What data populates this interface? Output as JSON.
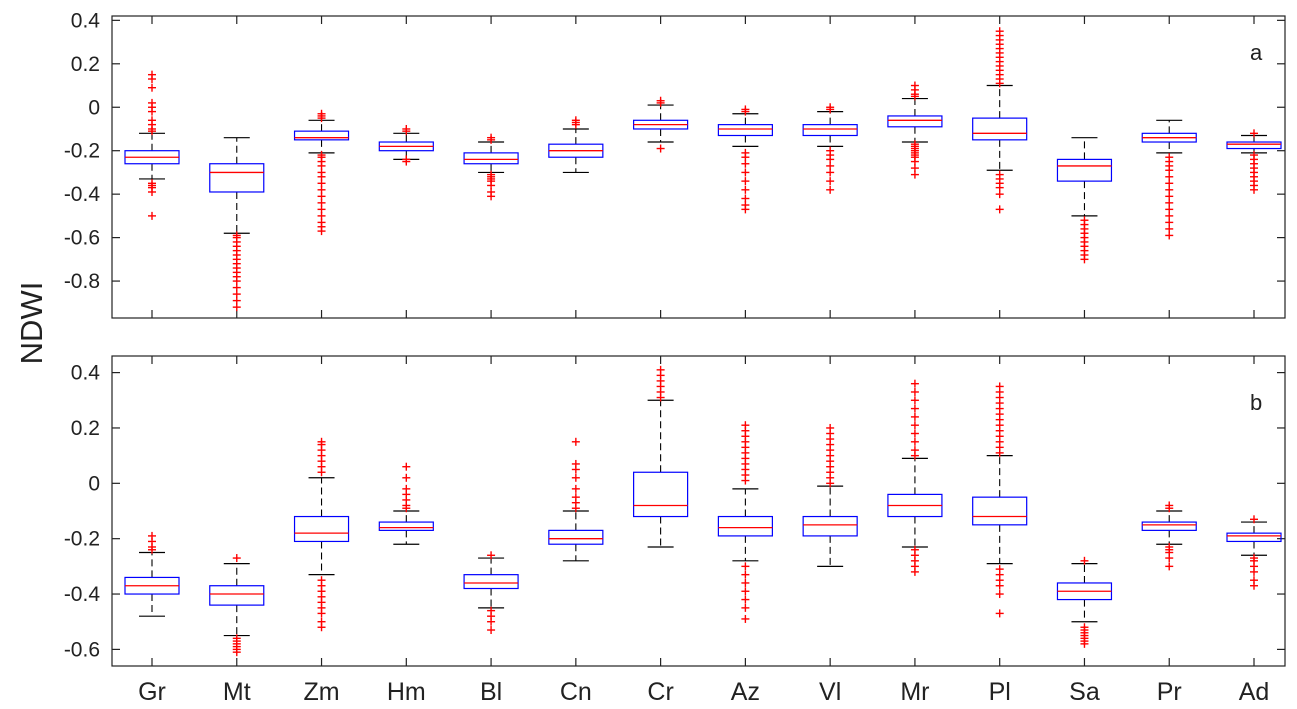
{
  "chart_data": {
    "type": "box",
    "ylabel": "NDWI",
    "categories": [
      "Gr",
      "Mt",
      "Zm",
      "Hm",
      "Bl",
      "Cn",
      "Cr",
      "Az",
      "Vl",
      "Mr",
      "Pl",
      "Sa",
      "Pr",
      "Ad"
    ],
    "colors": {
      "box": "#0000ff",
      "median": "#ff0000",
      "outlier": "#ff0000",
      "whisker": "#000000",
      "axes": "#222222"
    },
    "panels": [
      {
        "label": "a",
        "ylim": [
          -0.97,
          0.42
        ],
        "yticks": [
          0.4,
          0.2,
          0,
          -0.2,
          -0.4,
          -0.6,
          -0.8
        ],
        "ytick_labels": [
          "0.4",
          "0.2",
          "0",
          "-0.2",
          "-0.4",
          "-0.6",
          "-0.8"
        ],
        "boxes": [
          {
            "category": "Gr",
            "whisker_low": -0.33,
            "q1": -0.26,
            "median": -0.23,
            "q3": -0.2,
            "whisker_high": -0.12,
            "outliers": [
              0.15,
              0.13,
              0.09,
              0.02,
              0,
              -0.02,
              -0.06,
              -0.08,
              -0.1,
              -0.11,
              -0.35,
              -0.36,
              -0.37,
              -0.39,
              -0.5
            ]
          },
          {
            "category": "Mt",
            "whisker_low": -0.58,
            "q1": -0.39,
            "median": -0.3,
            "q3": -0.26,
            "whisker_high": -0.14,
            "outliers": [
              -0.59,
              -0.6,
              -0.62,
              -0.64,
              -0.66,
              -0.68,
              -0.7,
              -0.72,
              -0.74,
              -0.76,
              -0.78,
              -0.8,
              -0.83,
              -0.86,
              -0.89,
              -0.92
            ]
          },
          {
            "category": "Zm",
            "whisker_low": -0.21,
            "q1": -0.15,
            "median": -0.14,
            "q3": -0.11,
            "whisker_high": -0.06,
            "outliers": [
              -0.03,
              -0.04,
              -0.05,
              -0.22,
              -0.23,
              -0.25,
              -0.27,
              -0.3,
              -0.32,
              -0.35,
              -0.38,
              -0.41,
              -0.44,
              -0.47,
              -0.5,
              -0.53,
              -0.55,
              -0.57
            ]
          },
          {
            "category": "Hm",
            "whisker_low": -0.24,
            "q1": -0.2,
            "median": -0.18,
            "q3": -0.16,
            "whisker_high": -0.12,
            "outliers": [
              -0.1,
              -0.11,
              -0.24,
              -0.25
            ]
          },
          {
            "category": "Bl",
            "whisker_low": -0.3,
            "q1": -0.26,
            "median": -0.24,
            "q3": -0.21,
            "whisker_high": -0.16,
            "outliers": [
              -0.14,
              -0.15,
              -0.31,
              -0.32,
              -0.33,
              -0.34,
              -0.36,
              -0.39,
              -0.41
            ]
          },
          {
            "category": "Cn",
            "whisker_low": -0.3,
            "q1": -0.23,
            "median": -0.2,
            "q3": -0.17,
            "whisker_high": -0.1,
            "outliers": [
              -0.06,
              -0.07,
              -0.08
            ]
          },
          {
            "category": "Cr",
            "whisker_low": -0.16,
            "q1": -0.1,
            "median": -0.08,
            "q3": -0.06,
            "whisker_high": 0.01,
            "outliers": [
              0.02,
              0.03,
              -0.19
            ]
          },
          {
            "category": "Az",
            "whisker_low": -0.18,
            "q1": -0.13,
            "median": -0.1,
            "q3": -0.08,
            "whisker_high": -0.03,
            "outliers": [
              -0.01,
              -0.02,
              -0.21,
              -0.23,
              -0.26,
              -0.3,
              -0.34,
              -0.38,
              -0.42,
              -0.45,
              -0.47
            ]
          },
          {
            "category": "Vl",
            "whisker_low": -0.18,
            "q1": -0.13,
            "median": -0.1,
            "q3": -0.08,
            "whisker_high": -0.02,
            "outliers": [
              0,
              -0.01,
              -0.2,
              -0.22,
              -0.24,
              -0.27,
              -0.3,
              -0.34,
              -0.38
            ]
          },
          {
            "category": "Mr",
            "whisker_low": -0.16,
            "q1": -0.09,
            "median": -0.06,
            "q3": -0.04,
            "whisker_high": 0.04,
            "outliers": [
              0.1,
              0.08,
              0.06,
              0.05,
              -0.17,
              -0.18,
              -0.19,
              -0.2,
              -0.21,
              -0.22,
              -0.23,
              -0.25,
              -0.28,
              -0.31
            ]
          },
          {
            "category": "Pl",
            "whisker_low": -0.29,
            "q1": -0.15,
            "median": -0.12,
            "q3": -0.05,
            "whisker_high": 0.1,
            "outliers": [
              0.35,
              0.33,
              0.31,
              0.29,
              0.27,
              0.25,
              0.23,
              0.21,
              0.19,
              0.17,
              0.15,
              0.13,
              0.11,
              -0.31,
              -0.33,
              -0.35,
              -0.37,
              -0.4,
              -0.47
            ]
          },
          {
            "category": "Sa",
            "whisker_low": -0.5,
            "q1": -0.34,
            "median": -0.27,
            "q3": -0.24,
            "whisker_high": -0.14,
            "outliers": [
              -0.52,
              -0.54,
              -0.56,
              -0.58,
              -0.6,
              -0.62,
              -0.64,
              -0.66,
              -0.68,
              -0.7
            ]
          },
          {
            "category": "Pr",
            "whisker_low": -0.21,
            "q1": -0.16,
            "median": -0.14,
            "q3": -0.12,
            "whisker_high": -0.06,
            "outliers": [
              -0.23,
              -0.25,
              -0.27,
              -0.29,
              -0.32,
              -0.35,
              -0.38,
              -0.41,
              -0.44,
              -0.47,
              -0.5,
              -0.53,
              -0.56,
              -0.59
            ]
          },
          {
            "category": "Ad",
            "whisker_low": -0.21,
            "q1": -0.19,
            "median": -0.17,
            "q3": -0.16,
            "whisker_high": -0.13,
            "outliers": [
              -0.12,
              -0.22,
              -0.24,
              -0.26,
              -0.28,
              -0.3,
              -0.32,
              -0.34,
              -0.36,
              -0.38
            ]
          }
        ]
      },
      {
        "label": "b",
        "ylim": [
          -0.66,
          0.46
        ],
        "yticks": [
          0.4,
          0.2,
          0,
          -0.2,
          -0.4,
          -0.6
        ],
        "ytick_labels": [
          "0.4",
          "0.2",
          "0",
          "-0.2",
          "-0.4",
          "-0.6"
        ],
        "boxes": [
          {
            "category": "Gr",
            "whisker_low": -0.48,
            "q1": -0.4,
            "median": -0.37,
            "q3": -0.34,
            "whisker_high": -0.25,
            "outliers": [
              -0.19,
              -0.21,
              -0.23,
              -0.24
            ]
          },
          {
            "category": "Mt",
            "whisker_low": -0.55,
            "q1": -0.44,
            "median": -0.4,
            "q3": -0.37,
            "whisker_high": -0.29,
            "outliers": [
              -0.27,
              -0.56,
              -0.57,
              -0.58,
              -0.59,
              -0.6,
              -0.61
            ]
          },
          {
            "category": "Zm",
            "whisker_low": -0.33,
            "q1": -0.21,
            "median": -0.18,
            "q3": -0.12,
            "whisker_high": 0.02,
            "outliers": [
              0.15,
              0.14,
              0.12,
              0.1,
              0.08,
              0.06,
              0.04,
              -0.35,
              -0.37,
              -0.39,
              -0.41,
              -0.43,
              -0.45,
              -0.47,
              -0.5,
              -0.52
            ]
          },
          {
            "category": "Hm",
            "whisker_low": -0.22,
            "q1": -0.17,
            "median": -0.16,
            "q3": -0.14,
            "whisker_high": -0.1,
            "outliers": [
              0.06,
              0.02,
              -0.02,
              -0.04,
              -0.06,
              -0.08,
              -0.09
            ]
          },
          {
            "category": "Bl",
            "whisker_low": -0.45,
            "q1": -0.38,
            "median": -0.36,
            "q3": -0.33,
            "whisker_high": -0.27,
            "outliers": [
              -0.26,
              -0.46,
              -0.48,
              -0.5,
              -0.53
            ]
          },
          {
            "category": "Cn",
            "whisker_low": -0.28,
            "q1": -0.22,
            "median": -0.2,
            "q3": -0.17,
            "whisker_high": -0.1,
            "outliers": [
              0.15,
              0.07,
              0.05,
              0.02,
              -0.02,
              -0.05,
              -0.07,
              -0.09
            ]
          },
          {
            "category": "Cr",
            "whisker_low": -0.23,
            "q1": -0.12,
            "median": -0.08,
            "q3": 0.04,
            "whisker_high": 0.3,
            "outliers": [
              0.41,
              0.39,
              0.37,
              0.35,
              0.33,
              0.31
            ]
          },
          {
            "category": "Az",
            "whisker_low": -0.28,
            "q1": -0.19,
            "median": -0.16,
            "q3": -0.12,
            "whisker_high": -0.02,
            "outliers": [
              0.21,
              0.19,
              0.17,
              0.15,
              0.13,
              0.11,
              0.09,
              0.07,
              0.05,
              0.03,
              0.01,
              -0.3,
              -0.33,
              -0.36,
              -0.39,
              -0.42,
              -0.45,
              -0.49
            ]
          },
          {
            "category": "Vl",
            "whisker_low": -0.3,
            "q1": -0.19,
            "median": -0.15,
            "q3": -0.12,
            "whisker_high": -0.01,
            "outliers": [
              0.2,
              0.18,
              0.16,
              0.14,
              0.12,
              0.1,
              0.08,
              0.06,
              0.04,
              0.02,
              0
            ]
          },
          {
            "category": "Mr",
            "whisker_low": -0.23,
            "q1": -0.12,
            "median": -0.08,
            "q3": -0.04,
            "whisker_high": 0.09,
            "outliers": [
              0.36,
              0.33,
              0.3,
              0.27,
              0.24,
              0.21,
              0.18,
              0.15,
              0.12,
              0.1,
              -0.24,
              -0.26,
              -0.28,
              -0.3,
              -0.32
            ]
          },
          {
            "category": "Pl",
            "whisker_low": -0.29,
            "q1": -0.15,
            "median": -0.12,
            "q3": -0.05,
            "whisker_high": 0.1,
            "outliers": [
              0.35,
              0.33,
              0.31,
              0.29,
              0.27,
              0.25,
              0.23,
              0.21,
              0.19,
              0.17,
              0.15,
              0.13,
              0.11,
              -0.31,
              -0.33,
              -0.35,
              -0.37,
              -0.4,
              -0.47
            ]
          },
          {
            "category": "Sa",
            "whisker_low": -0.5,
            "q1": -0.42,
            "median": -0.39,
            "q3": -0.36,
            "whisker_high": -0.29,
            "outliers": [
              -0.28,
              -0.52,
              -0.53,
              -0.54,
              -0.55,
              -0.56,
              -0.57,
              -0.58
            ]
          },
          {
            "category": "Pr",
            "whisker_low": -0.22,
            "q1": -0.17,
            "median": -0.15,
            "q3": -0.14,
            "whisker_high": -0.1,
            "outliers": [
              -0.08,
              -0.09,
              -0.23,
              -0.24,
              -0.25,
              -0.27,
              -0.3
            ]
          },
          {
            "category": "Ad",
            "whisker_low": -0.26,
            "q1": -0.21,
            "median": -0.19,
            "q3": -0.18,
            "whisker_high": -0.14,
            "outliers": [
              -0.13,
              -0.27,
              -0.28,
              -0.3,
              -0.32,
              -0.35,
              -0.37
            ]
          }
        ]
      }
    ]
  }
}
